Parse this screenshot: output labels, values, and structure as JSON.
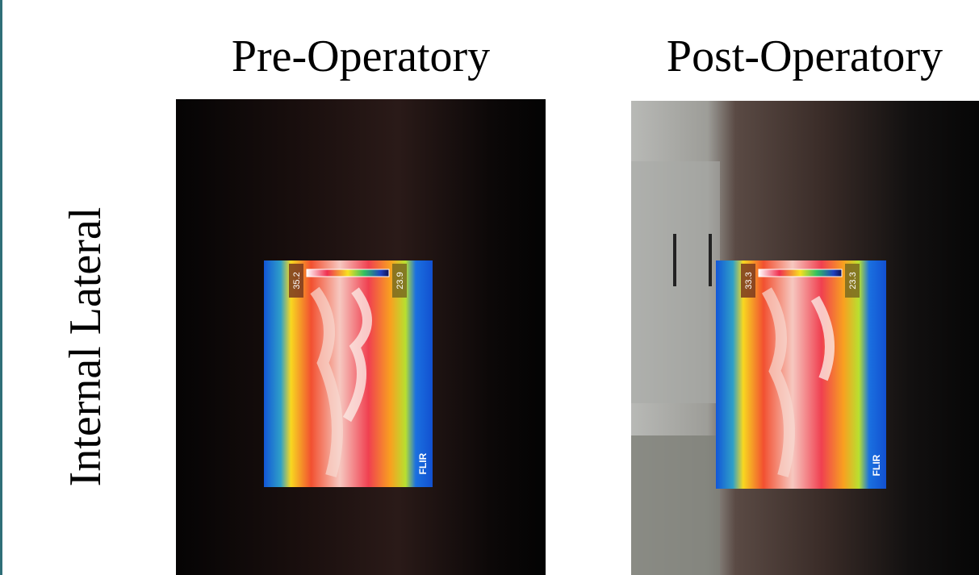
{
  "columns": [
    "Pre-Operatory",
    "Post-Operatory"
  ],
  "row_label": "Internal Lateral",
  "images": [
    {
      "scale_max": "35.2",
      "scale_min": "23.9",
      "brand": "FLIR"
    },
    {
      "scale_max": "33.3",
      "scale_min": "23.3",
      "brand": "FLIR"
    }
  ]
}
